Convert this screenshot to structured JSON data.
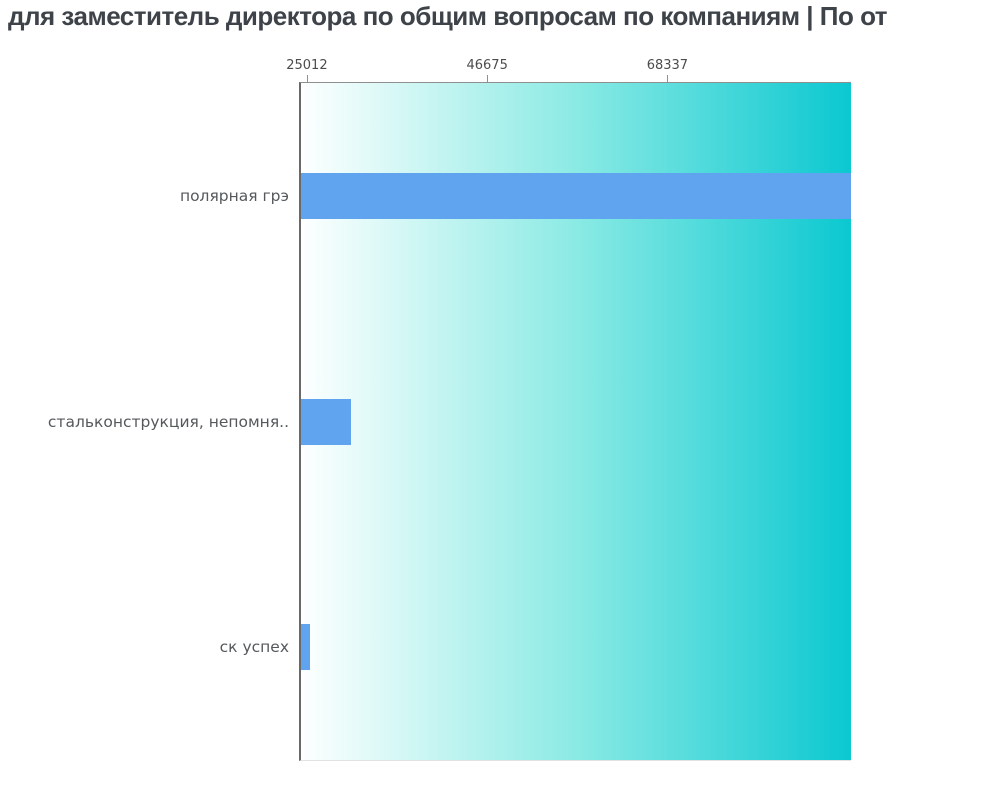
{
  "title": "для заместитель директора по общим вопросам по компаниям  | По от",
  "chart_data": {
    "type": "bar",
    "orientation": "horizontal",
    "title": "для заместитель директора по общим вопросам по компаниям  | По от",
    "categories": [
      "полярная грэ",
      "стальконструкция, непомня..",
      "ск успех"
    ],
    "values": [
      90400,
      30300,
      25400
    ],
    "x_ticks": [
      25012,
      46675,
      68337
    ],
    "xlim": [
      24300,
      90400
    ],
    "xlabel": "",
    "ylabel": "",
    "grid": false,
    "legend": false,
    "colors": {
      "bar": "#60a4ef",
      "plot_bg_left": "#feffff",
      "plot_bg_mid": "#8beae4",
      "plot_bg_right": "#0bc8d1",
      "title_text": "#3e4349",
      "tick_text": "#4c4c4c",
      "category_text": "#55595c",
      "axis_line": "#696969"
    }
  }
}
